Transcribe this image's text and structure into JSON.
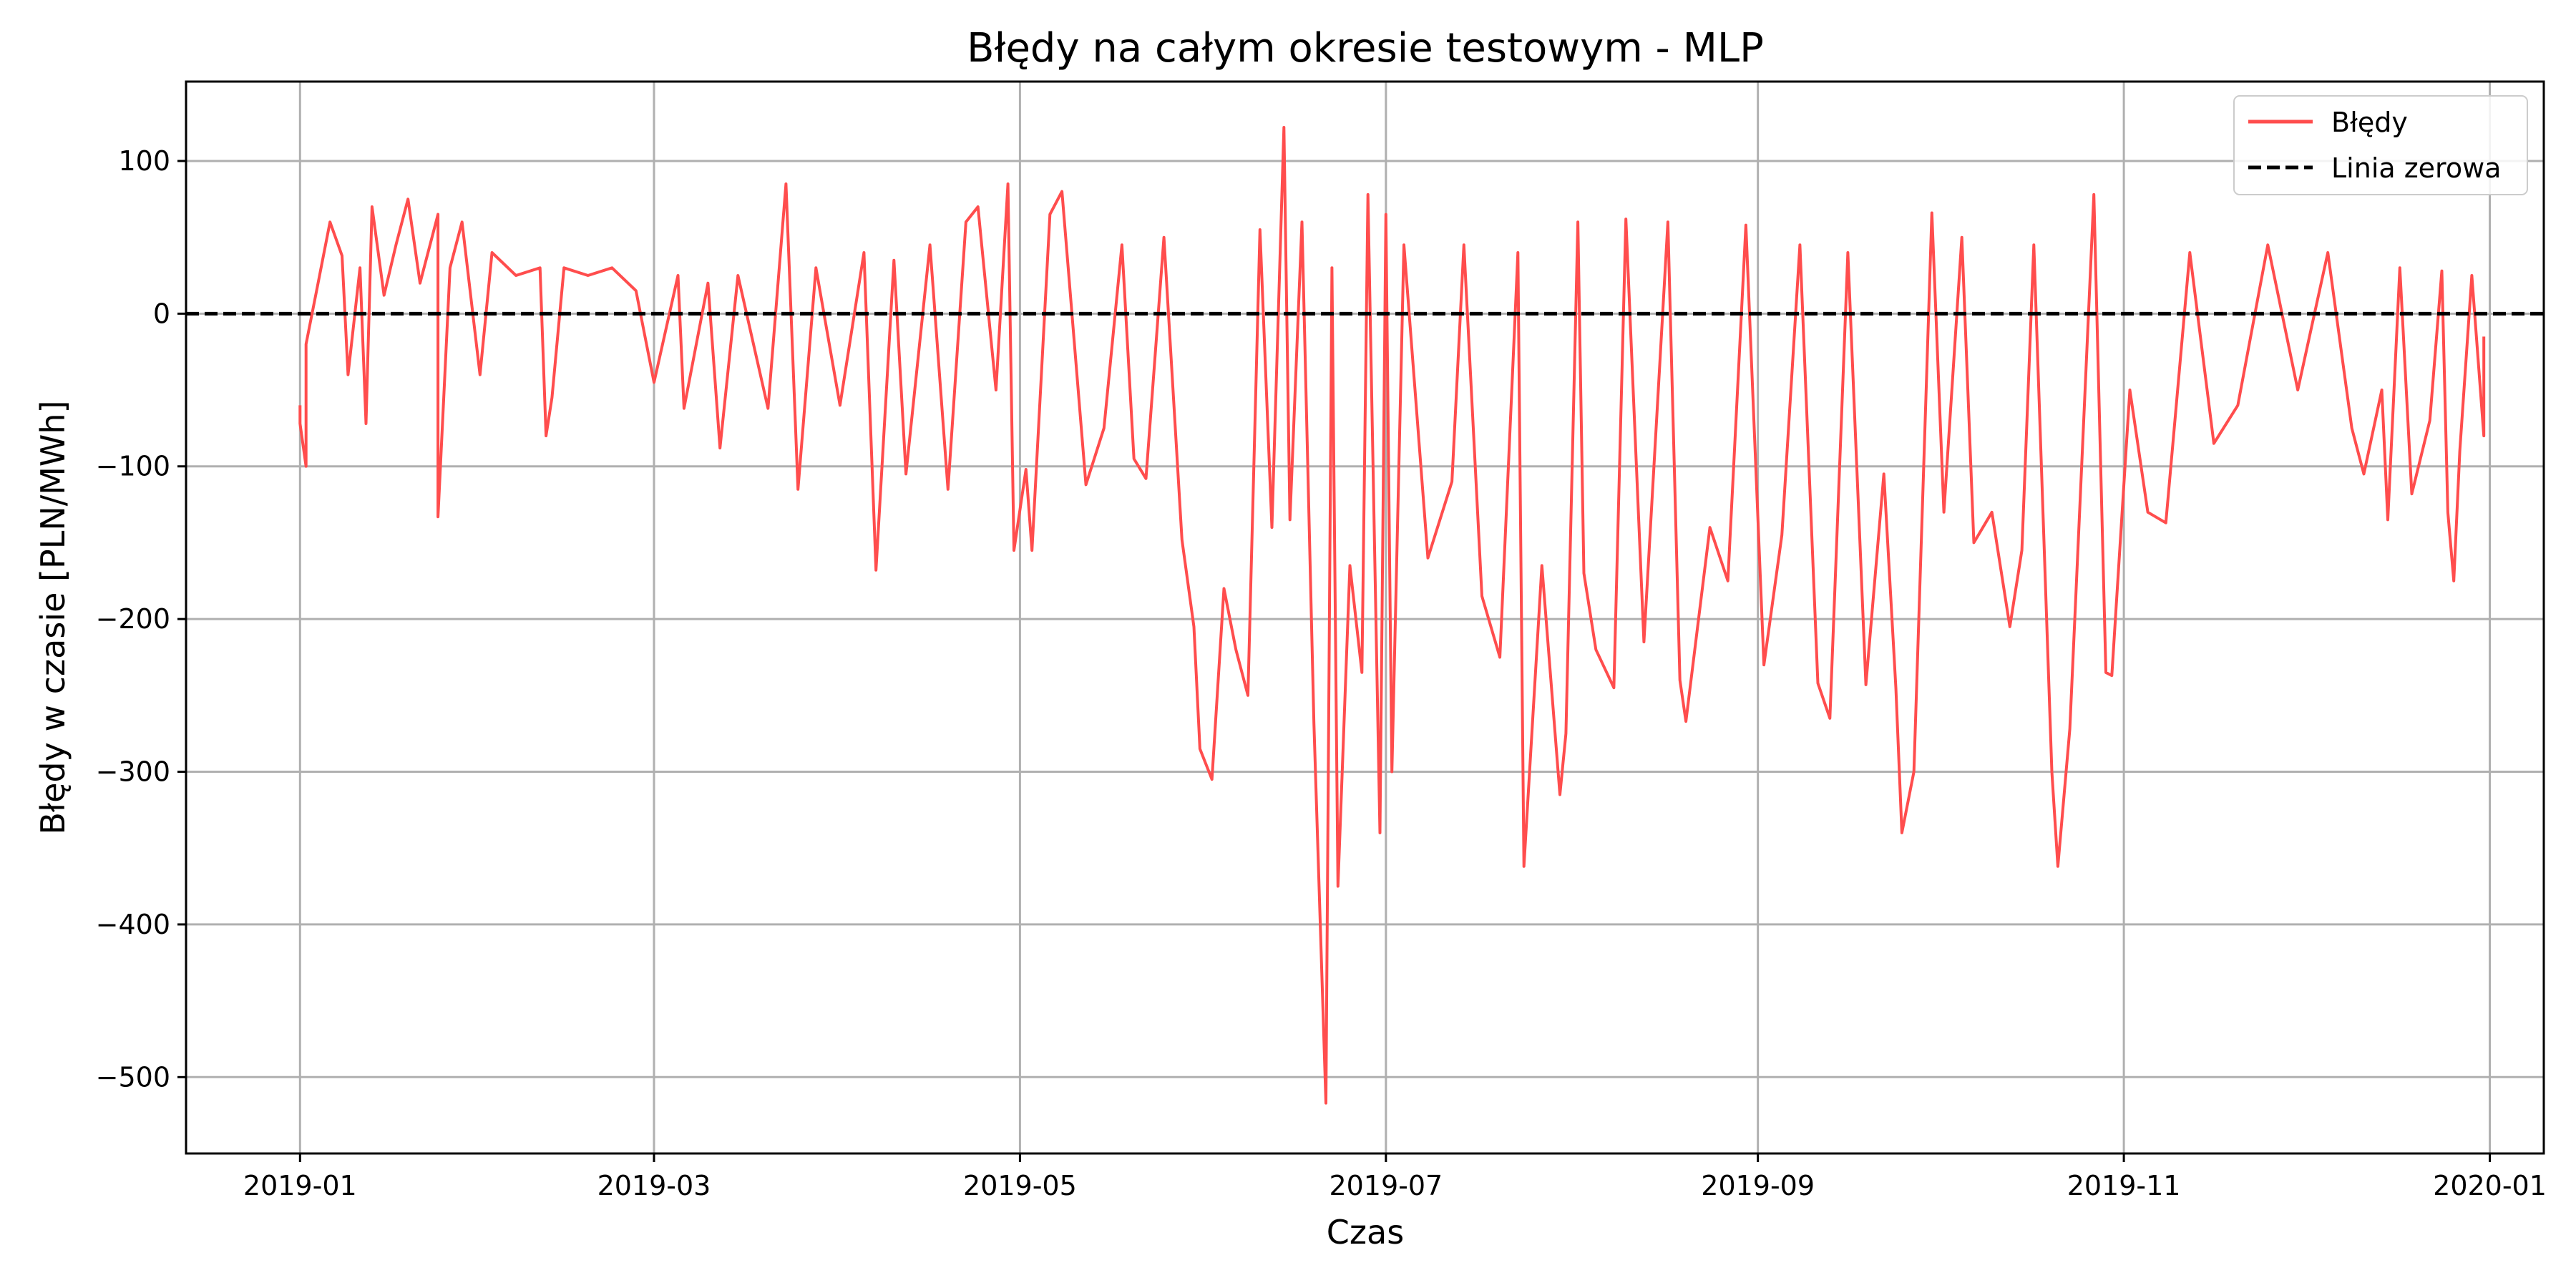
{
  "chart_data": {
    "type": "line",
    "title": "Błędy na całym okresie testowym - MLP",
    "xlabel": "Czas",
    "ylabel": "Błędy w czasie [PLN/MWh]",
    "x_range": [
      "2018-12-13",
      "2020-01-10"
    ],
    "ylim": [
      -550,
      152
    ],
    "x_ticks": [
      "2019-01",
      "2019-03",
      "2019-05",
      "2019-07",
      "2019-09",
      "2019-11",
      "2020-01"
    ],
    "y_ticks": [
      100,
      0,
      -100,
      -200,
      -300,
      -400,
      -500
    ],
    "grid": true,
    "legend_position": "top-right",
    "colors": {
      "errors": "#ff4d4d",
      "zero_line": "#000000",
      "grid": "#b0b0b0"
    },
    "series": [
      {
        "name": "Błędy",
        "style": "solid",
        "points": [
          [
            "2019-01-01",
            -60
          ],
          [
            "2019-01-01",
            -72
          ],
          [
            "2019-01-02",
            -100
          ],
          [
            "2019-01-02",
            -20
          ],
          [
            "2019-01-04",
            20
          ],
          [
            "2019-01-06",
            60
          ],
          [
            "2019-01-08",
            38
          ],
          [
            "2019-01-09",
            -40
          ],
          [
            "2019-01-11",
            30
          ],
          [
            "2019-01-12",
            -72
          ],
          [
            "2019-01-13",
            70
          ],
          [
            "2019-01-15",
            12
          ],
          [
            "2019-01-17",
            45
          ],
          [
            "2019-01-19",
            75
          ],
          [
            "2019-01-21",
            20
          ],
          [
            "2019-01-24",
            65
          ],
          [
            "2019-01-24",
            -133
          ],
          [
            "2019-01-26",
            30
          ],
          [
            "2019-01-28",
            60
          ],
          [
            "2019-01-31",
            -40
          ],
          [
            "2019-02-02",
            40
          ],
          [
            "2019-02-06",
            25
          ],
          [
            "2019-02-10",
            30
          ],
          [
            "2019-02-11",
            -80
          ],
          [
            "2019-02-12",
            -55
          ],
          [
            "2019-02-14",
            30
          ],
          [
            "2019-02-18",
            25
          ],
          [
            "2019-02-22",
            30
          ],
          [
            "2019-02-26",
            15
          ],
          [
            "2019-03-01",
            -45
          ],
          [
            "2019-03-05",
            25
          ],
          [
            "2019-03-06",
            -62
          ],
          [
            "2019-03-10",
            20
          ],
          [
            "2019-03-12",
            -88
          ],
          [
            "2019-03-15",
            25
          ],
          [
            "2019-03-20",
            -62
          ],
          [
            "2019-03-23",
            85
          ],
          [
            "2019-03-25",
            -115
          ],
          [
            "2019-03-28",
            30
          ],
          [
            "2019-04-01",
            -60
          ],
          [
            "2019-04-05",
            40
          ],
          [
            "2019-04-07",
            -168
          ],
          [
            "2019-04-10",
            35
          ],
          [
            "2019-04-12",
            -105
          ],
          [
            "2019-04-16",
            45
          ],
          [
            "2019-04-19",
            -115
          ],
          [
            "2019-04-22",
            60
          ],
          [
            "2019-04-24",
            70
          ],
          [
            "2019-04-27",
            -50
          ],
          [
            "2019-04-29",
            85
          ],
          [
            "2019-04-30",
            -155
          ],
          [
            "2019-05-02",
            -102
          ],
          [
            "2019-05-03",
            -155
          ],
          [
            "2019-05-06",
            65
          ],
          [
            "2019-05-08",
            80
          ],
          [
            "2019-05-12",
            -112
          ],
          [
            "2019-05-15",
            -75
          ],
          [
            "2019-05-18",
            45
          ],
          [
            "2019-05-20",
            -95
          ],
          [
            "2019-05-22",
            -108
          ],
          [
            "2019-05-25",
            50
          ],
          [
            "2019-05-28",
            -148
          ],
          [
            "2019-05-30",
            -205
          ],
          [
            "2019-05-31",
            -285
          ],
          [
            "2019-06-02",
            -305
          ],
          [
            "2019-06-04",
            -180
          ],
          [
            "2019-06-06",
            -220
          ],
          [
            "2019-06-08",
            -250
          ],
          [
            "2019-06-10",
            55
          ],
          [
            "2019-06-12",
            -140
          ],
          [
            "2019-06-14",
            122
          ],
          [
            "2019-06-15",
            -135
          ],
          [
            "2019-06-17",
            60
          ],
          [
            "2019-06-19",
            -268
          ],
          [
            "2019-06-21",
            -517
          ],
          [
            "2019-06-22",
            30
          ],
          [
            "2019-06-23",
            -375
          ],
          [
            "2019-06-25",
            -165
          ],
          [
            "2019-06-27",
            -235
          ],
          [
            "2019-06-28",
            78
          ],
          [
            "2019-06-30",
            -340
          ],
          [
            "2019-07-01",
            65
          ],
          [
            "2019-07-02",
            -300
          ],
          [
            "2019-07-04",
            45
          ],
          [
            "2019-07-08",
            -160
          ],
          [
            "2019-07-12",
            -110
          ],
          [
            "2019-07-14",
            45
          ],
          [
            "2019-07-17",
            -185
          ],
          [
            "2019-07-20",
            -225
          ],
          [
            "2019-07-23",
            40
          ],
          [
            "2019-07-24",
            -362
          ],
          [
            "2019-07-27",
            -165
          ],
          [
            "2019-07-30",
            -315
          ],
          [
            "2019-07-31",
            -275
          ],
          [
            "2019-08-02",
            60
          ],
          [
            "2019-08-03",
            -170
          ],
          [
            "2019-08-05",
            -220
          ],
          [
            "2019-08-08",
            -245
          ],
          [
            "2019-08-10",
            62
          ],
          [
            "2019-08-13",
            -215
          ],
          [
            "2019-08-17",
            60
          ],
          [
            "2019-08-19",
            -240
          ],
          [
            "2019-08-20",
            -267
          ],
          [
            "2019-08-24",
            -140
          ],
          [
            "2019-08-27",
            -175
          ],
          [
            "2019-08-30",
            58
          ],
          [
            "2019-09-02",
            -230
          ],
          [
            "2019-09-05",
            -145
          ],
          [
            "2019-09-08",
            45
          ],
          [
            "2019-09-11",
            -242
          ],
          [
            "2019-09-13",
            -265
          ],
          [
            "2019-09-16",
            40
          ],
          [
            "2019-09-19",
            -243
          ],
          [
            "2019-09-22",
            -105
          ],
          [
            "2019-09-24",
            -245
          ],
          [
            "2019-09-25",
            -340
          ],
          [
            "2019-09-26",
            -320
          ],
          [
            "2019-09-27",
            -300
          ],
          [
            "2019-09-30",
            66
          ],
          [
            "2019-10-02",
            -130
          ],
          [
            "2019-10-05",
            50
          ],
          [
            "2019-10-07",
            -150
          ],
          [
            "2019-10-10",
            -130
          ],
          [
            "2019-10-13",
            -205
          ],
          [
            "2019-10-15",
            -155
          ],
          [
            "2019-10-17",
            45
          ],
          [
            "2019-10-20",
            -300
          ],
          [
            "2019-10-21",
            -362
          ],
          [
            "2019-10-23",
            -272
          ],
          [
            "2019-10-24",
            -185
          ],
          [
            "2019-10-27",
            78
          ],
          [
            "2019-10-29",
            -235
          ],
          [
            "2019-10-30",
            -237
          ],
          [
            "2019-11-02",
            -50
          ],
          [
            "2019-11-05",
            -130
          ],
          [
            "2019-11-08",
            -137
          ],
          [
            "2019-11-12",
            40
          ],
          [
            "2019-11-16",
            -85
          ],
          [
            "2019-11-20",
            -60
          ],
          [
            "2019-11-25",
            45
          ],
          [
            "2019-11-30",
            -50
          ],
          [
            "2019-12-05",
            40
          ],
          [
            "2019-12-09",
            -75
          ],
          [
            "2019-12-11",
            -105
          ],
          [
            "2019-12-14",
            -50
          ],
          [
            "2019-12-15",
            -135
          ],
          [
            "2019-12-17",
            30
          ],
          [
            "2019-12-19",
            -118
          ],
          [
            "2019-12-22",
            -70
          ],
          [
            "2019-12-24",
            28
          ],
          [
            "2019-12-25",
            -130
          ],
          [
            "2019-12-26",
            -175
          ],
          [
            "2019-12-27",
            -90
          ],
          [
            "2019-12-29",
            25
          ],
          [
            "2019-12-31",
            -80
          ],
          [
            "2019-12-31",
            -15
          ]
        ]
      },
      {
        "name": "Linia zerowa",
        "style": "dashed",
        "y": 0
      }
    ]
  }
}
